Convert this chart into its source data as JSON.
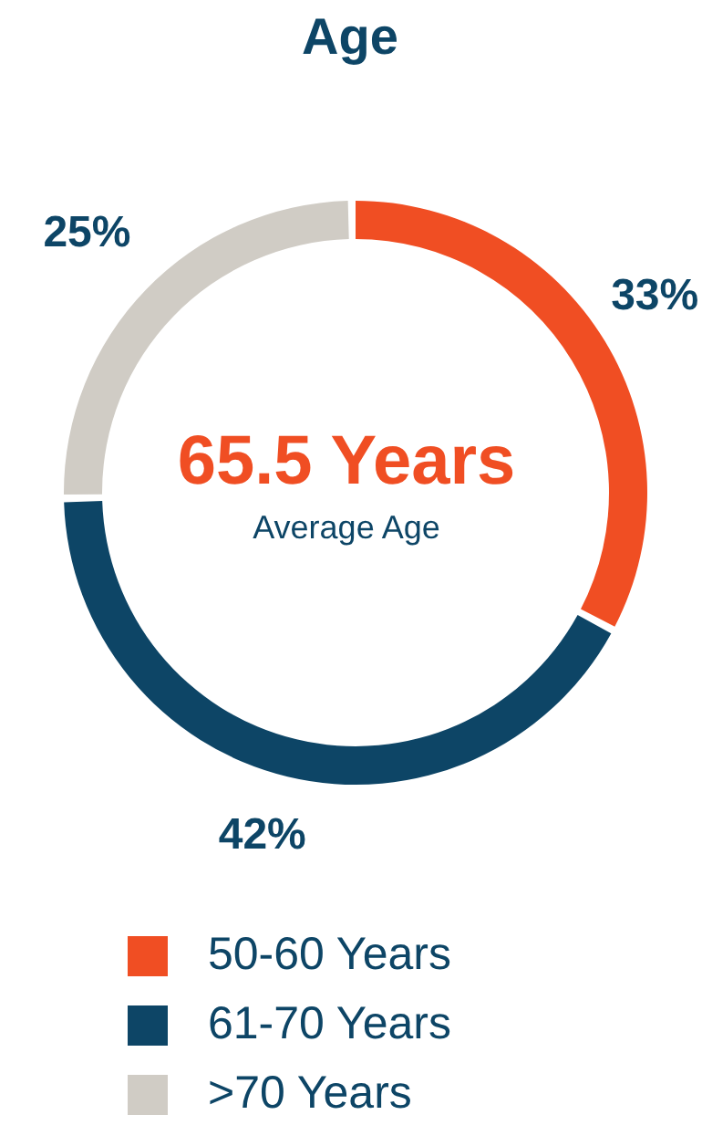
{
  "chart_data": {
    "type": "donut",
    "title": "Age",
    "categories": [
      "50-60 Years",
      "61-70 Years",
      ">70 Years"
    ],
    "values": [
      33,
      42,
      25
    ],
    "value_labels": [
      "33%",
      "42%",
      "25%"
    ],
    "colors": [
      "#f04e23",
      "#0d4566",
      "#d0ccc5"
    ],
    "annotations": [
      "65.5 Years",
      "Average Age"
    ],
    "legend": "bottom"
  }
}
